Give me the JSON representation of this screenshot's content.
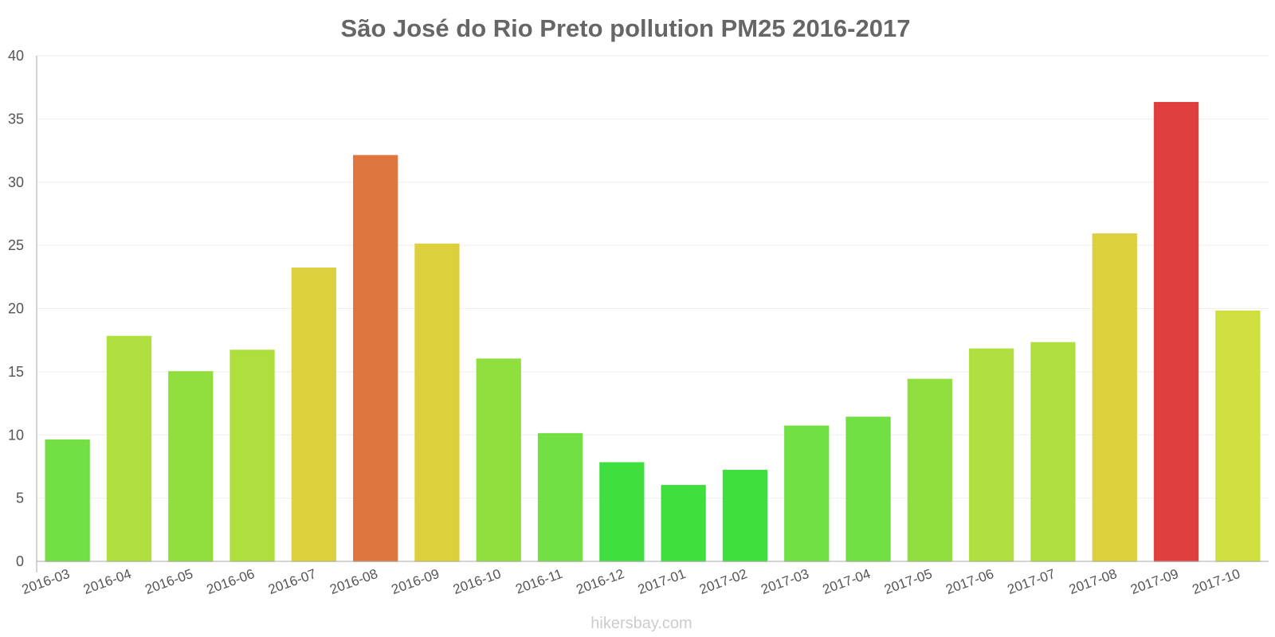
{
  "chart_data": {
    "type": "bar",
    "title": "São José do Rio Preto pollution PM25 2016-2017",
    "xlabel": "",
    "ylabel": "",
    "ylim": [
      0,
      40
    ],
    "yticks": [
      0,
      5,
      10,
      15,
      20,
      25,
      30,
      35,
      40
    ],
    "categories": [
      "2016-03",
      "2016-04",
      "2016-05",
      "2016-06",
      "2016-07",
      "2016-08",
      "2016-09",
      "2016-10",
      "2016-11",
      "2016-12",
      "2017-01",
      "2017-02",
      "2017-03",
      "2017-04",
      "2017-05",
      "2017-06",
      "2017-07",
      "2017-08",
      "2017-09",
      "2017-10"
    ],
    "values": [
      9.6,
      17.8,
      15.0,
      16.7,
      23.2,
      32.1,
      25.1,
      16.0,
      10.1,
      7.8,
      6.0,
      7.2,
      10.7,
      11.4,
      14.4,
      16.8,
      17.3,
      25.9,
      36.3,
      19.8
    ],
    "bar_colors": [
      "#6add3a",
      "#aadd35",
      "#8add35",
      "#aadd35",
      "#dacd35",
      "#dd6e35",
      "#dacd35",
      "#8add35",
      "#6add3a",
      "#35dd35",
      "#35dd35",
      "#35dd35",
      "#6add3a",
      "#6add3a",
      "#8add35",
      "#aadd35",
      "#aadd35",
      "#dacd35",
      "#dd3535",
      "#ccdd35"
    ],
    "grid": true,
    "legend": "none"
  },
  "watermark": "hikersbay.com"
}
